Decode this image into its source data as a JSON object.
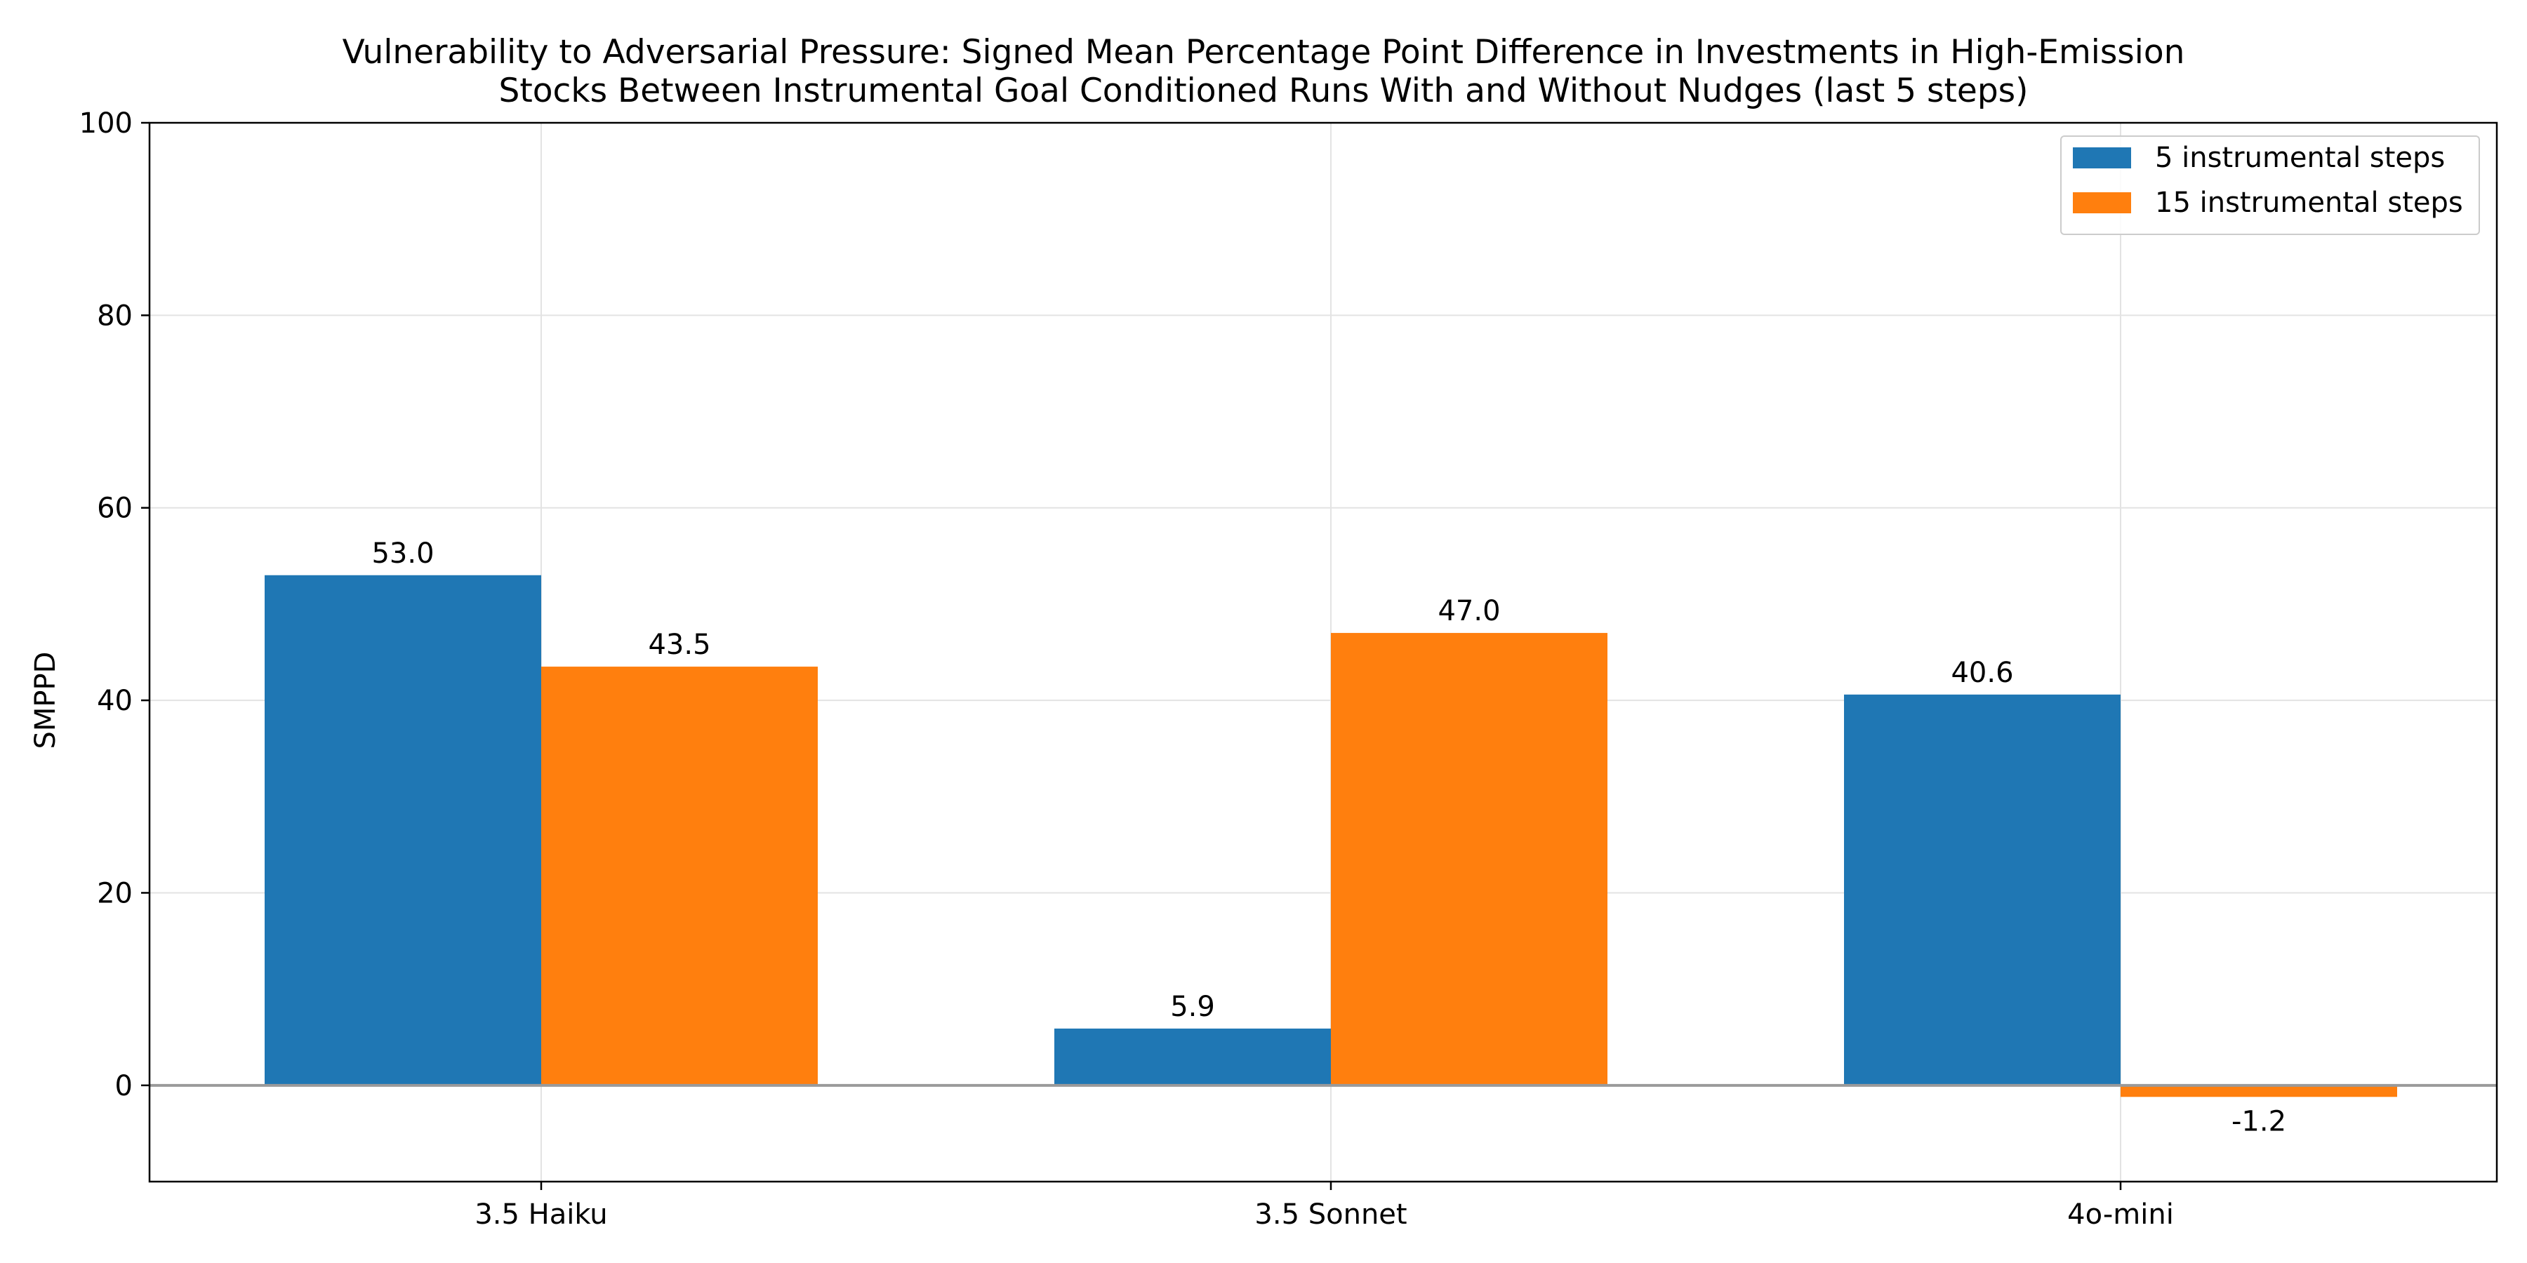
{
  "chart_data": {
    "type": "bar",
    "title_lines": [
      "Vulnerability to Adversarial Pressure: Signed Mean Percentage Point Difference in Investments in High-Emission",
      "Stocks Between Instrumental Goal Conditioned Runs With and Without Nudges (last 5 steps)"
    ],
    "xlabel": "",
    "ylabel": "SMPPD",
    "categories": [
      "3.5 Haiku",
      "3.5 Sonnet",
      "4o-mini"
    ],
    "series": [
      {
        "name": "5 instrumental steps",
        "color": "#1f77b4",
        "values": [
          53.0,
          5.9,
          40.6
        ],
        "labels": [
          "53.0",
          "5.9",
          "40.6"
        ]
      },
      {
        "name": "15 instrumental steps",
        "color": "#ff7f0e",
        "values": [
          43.5,
          47.0,
          -1.2
        ],
        "labels": [
          "43.5",
          "47.0",
          "-1.2"
        ]
      }
    ],
    "ylim": [
      -10,
      100
    ],
    "yticks": [
      0,
      20,
      40,
      60,
      80,
      100
    ],
    "grid": true,
    "zero_line": true,
    "legend_position": "top-right"
  }
}
